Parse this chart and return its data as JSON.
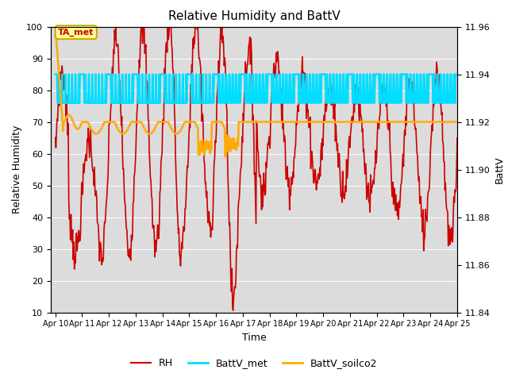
{
  "title": "Relative Humidity and BattV",
  "xlabel": "Time",
  "ylabel_left": "Relative Humidity",
  "ylabel_right": "BattV",
  "ylim_left": [
    10,
    100
  ],
  "ylim_right": [
    11.84,
    11.96
  ],
  "yticks_left": [
    10,
    20,
    30,
    40,
    50,
    60,
    70,
    80,
    90,
    100
  ],
  "yticks_right": [
    11.84,
    11.86,
    11.88,
    11.9,
    11.92,
    11.94,
    11.96
  ],
  "bg_color": "#dcdcdc",
  "annotation_text": "TA_met",
  "annotation_facecolor": "#ffff99",
  "annotation_edgecolor": "#ccaa00",
  "annotation_textcolor": "#cc0000",
  "rh_color": "#cc0000",
  "batt_met_color": "#00ddff",
  "batt_soil_color": "#ffaa00",
  "legend_labels": [
    "RH",
    "BattV_met",
    "BattV_soilco2"
  ],
  "rh_linewidth": 1.2,
  "batt_linewidth": 1.8,
  "x_start_days": 9.83,
  "x_end_days": 25.0,
  "xtick_positions": [
    10,
    11,
    12,
    13,
    14,
    15,
    16,
    17,
    18,
    19,
    20,
    21,
    22,
    23,
    24,
    25
  ],
  "xtick_labels": [
    "Apr 10",
    "Apr 11",
    "Apr 12",
    "Apr 13",
    "Apr 14",
    "Apr 15",
    "Apr 16",
    "Apr 17",
    "Apr 18",
    "Apr 19",
    "Apr 20",
    "Apr 21",
    "Apr 22",
    "Apr 23",
    "Apr 24",
    "Apr 25"
  ]
}
